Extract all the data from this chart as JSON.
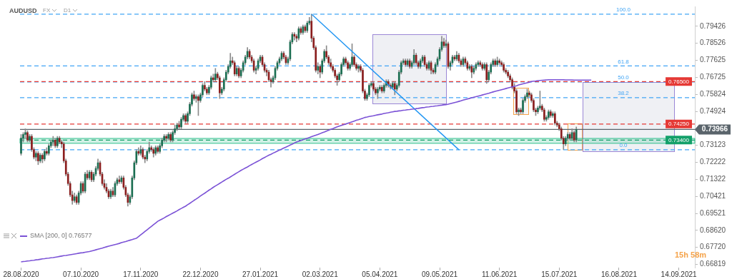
{
  "chart_data": {
    "type": "candlestick",
    "title": "AUDUSD",
    "categories": [
      "28.08.2020",
      null,
      null,
      null,
      null,
      null,
      null,
      null,
      null,
      null,
      null,
      null,
      null,
      null,
      null,
      null,
      null,
      null,
      null,
      null,
      null,
      null,
      null,
      null,
      null,
      null,
      null,
      null,
      "07.10.2020",
      null,
      null,
      null,
      null,
      null,
      null,
      null,
      null,
      null,
      null,
      null,
      null,
      null,
      null,
      null,
      null,
      null,
      null,
      null,
      null,
      null,
      null,
      null,
      null,
      null,
      null,
      null,
      "17.11.2020",
      null,
      null,
      null,
      null,
      null,
      null,
      null,
      null,
      null,
      null,
      null,
      null,
      null,
      null,
      null,
      null,
      null,
      null,
      null,
      null,
      null,
      null,
      null,
      null,
      null,
      null,
      null,
      "22.12.2020",
      null,
      null,
      null,
      null,
      null,
      null,
      null,
      null,
      null,
      null,
      null,
      null,
      null,
      null,
      null,
      null,
      null,
      null,
      null,
      null,
      null,
      null,
      null,
      null,
      null,
      null,
      null,
      "27.01.2021",
      null,
      null,
      null,
      null,
      null,
      null,
      null,
      null,
      null,
      null,
      null,
      null,
      null,
      null,
      null,
      null,
      null,
      null,
      null,
      null,
      null,
      null,
      null,
      null,
      null,
      null,
      null,
      "02.03.2021",
      null,
      null,
      null,
      null,
      null,
      null,
      null,
      null,
      null,
      null,
      null,
      null,
      null,
      null,
      null,
      null,
      null,
      null,
      null,
      null,
      null,
      null,
      null,
      null,
      null,
      null,
      null,
      "05.04.2021",
      null,
      null,
      null,
      null,
      null,
      null,
      null,
      null,
      null,
      null,
      null,
      null,
      null,
      null,
      null,
      null,
      null,
      null,
      null,
      null,
      null,
      null,
      null,
      null,
      null,
      null,
      null,
      "09.05.2021",
      null,
      null,
      null,
      null,
      null,
      null,
      null,
      null,
      null,
      null,
      null,
      null,
      null,
      null,
      null,
      null,
      null,
      null,
      null,
      null,
      null,
      null,
      null,
      null,
      null,
      null,
      null,
      "11.06.2021",
      null,
      null,
      null,
      null,
      null,
      null,
      null,
      null,
      null,
      null,
      null,
      null,
      null,
      null,
      null,
      null,
      null,
      null,
      null,
      null,
      null,
      null,
      null,
      null,
      null,
      null,
      null,
      "15.07.2021",
      null,
      null,
      null,
      null,
      null,
      null,
      null,
      null,
      null,
      null,
      null,
      null,
      null,
      null,
      null,
      null,
      null,
      null,
      null,
      null,
      null,
      null,
      null,
      null,
      null,
      null,
      null,
      "16.08.2021",
      null,
      null,
      null,
      null,
      null,
      null,
      null,
      null,
      null,
      null,
      null,
      null,
      null,
      null,
      null,
      null,
      null,
      null,
      null,
      null,
      null,
      null,
      null,
      null,
      null,
      null,
      null,
      "14.09.2021",
      null,
      null,
      null,
      null,
      null,
      null,
      null
    ],
    "ohlc": [
      [
        0.727,
        0.737,
        0.726,
        0.735
      ],
      [
        0.735,
        0.738,
        0.733,
        0.737
      ],
      [
        0.737,
        0.74,
        0.735,
        0.738
      ],
      [
        0.738,
        0.739,
        0.733,
        0.734
      ],
      [
        0.734,
        0.737,
        0.733,
        0.736
      ],
      [
        0.736,
        0.737,
        0.728,
        0.729
      ],
      [
        0.729,
        0.73,
        0.724,
        0.725
      ],
      [
        0.725,
        0.728,
        0.723,
        0.727
      ],
      [
        0.727,
        0.728,
        0.721,
        0.723
      ],
      [
        0.723,
        0.727,
        0.722,
        0.726
      ],
      [
        0.726,
        0.727,
        0.722,
        0.724
      ],
      [
        0.724,
        0.729,
        0.723,
        0.728
      ],
      [
        0.728,
        0.73,
        0.726,
        0.727
      ],
      [
        0.727,
        0.732,
        0.726,
        0.731
      ],
      [
        0.731,
        0.734,
        0.73,
        0.733
      ],
      [
        0.733,
        0.736,
        0.731,
        0.734
      ],
      [
        0.734,
        0.735,
        0.73,
        0.731
      ],
      [
        0.731,
        0.736,
        0.73,
        0.735
      ],
      [
        0.735,
        0.736,
        0.732,
        0.733
      ],
      [
        0.733,
        0.734,
        0.73,
        0.732
      ],
      [
        0.732,
        0.733,
        0.722,
        0.723
      ],
      [
        0.723,
        0.724,
        0.715,
        0.716
      ],
      [
        0.716,
        0.717,
        0.71,
        0.711
      ],
      [
        0.711,
        0.712,
        0.704,
        0.705
      ],
      [
        0.705,
        0.707,
        0.7,
        0.702
      ],
      [
        0.702,
        0.706,
        0.701,
        0.704
      ],
      [
        0.704,
        0.705,
        0.7,
        0.701
      ],
      [
        0.701,
        0.707,
        0.7,
        0.706
      ],
      [
        0.706,
        0.712,
        0.705,
        0.711
      ],
      [
        0.711,
        0.712,
        0.706,
        0.707
      ],
      [
        0.707,
        0.717,
        0.706,
        0.716
      ],
      [
        0.716,
        0.718,
        0.713,
        0.714
      ],
      [
        0.714,
        0.718,
        0.713,
        0.717
      ],
      [
        0.717,
        0.718,
        0.712,
        0.713
      ],
      [
        0.713,
        0.717,
        0.712,
        0.716
      ],
      [
        0.716,
        0.72,
        0.715,
        0.719
      ],
      [
        0.719,
        0.724,
        0.718,
        0.722
      ],
      [
        0.722,
        0.723,
        0.715,
        0.716
      ],
      [
        0.716,
        0.717,
        0.71,
        0.711
      ],
      [
        0.711,
        0.713,
        0.708,
        0.709
      ],
      [
        0.709,
        0.711,
        0.706,
        0.707
      ],
      [
        0.707,
        0.708,
        0.703,
        0.704
      ],
      [
        0.704,
        0.708,
        0.703,
        0.707
      ],
      [
        0.707,
        0.709,
        0.704,
        0.705
      ],
      [
        0.705,
        0.712,
        0.704,
        0.711
      ],
      [
        0.711,
        0.714,
        0.71,
        0.713
      ],
      [
        0.713,
        0.715,
        0.711,
        0.712
      ],
      [
        0.712,
        0.715,
        0.711,
        0.714
      ],
      [
        0.714,
        0.715,
        0.708,
        0.709
      ],
      [
        0.709,
        0.71,
        0.704,
        0.705
      ],
      [
        0.705,
        0.706,
        0.699,
        0.701
      ],
      [
        0.701,
        0.705,
        0.7,
        0.704
      ],
      [
        0.704,
        0.715,
        0.703,
        0.714
      ],
      [
        0.714,
        0.723,
        0.713,
        0.722
      ],
      [
        0.722,
        0.729,
        0.721,
        0.728
      ],
      [
        0.728,
        0.73,
        0.726,
        0.727
      ],
      [
        0.727,
        0.731,
        0.726,
        0.729
      ],
      [
        0.729,
        0.73,
        0.724,
        0.725
      ],
      [
        0.725,
        0.726,
        0.722,
        0.724
      ],
      [
        0.724,
        0.729,
        0.723,
        0.728
      ],
      [
        0.728,
        0.733,
        0.727,
        0.73
      ],
      [
        0.73,
        0.731,
        0.728,
        0.729
      ],
      [
        0.729,
        0.73,
        0.725,
        0.727
      ],
      [
        0.727,
        0.731,
        0.726,
        0.73
      ],
      [
        0.73,
        0.731,
        0.727,
        0.728
      ],
      [
        0.728,
        0.732,
        0.727,
        0.731
      ],
      [
        0.731,
        0.735,
        0.73,
        0.734
      ],
      [
        0.734,
        0.737,
        0.733,
        0.736
      ],
      [
        0.736,
        0.737,
        0.733,
        0.735
      ],
      [
        0.735,
        0.738,
        0.734,
        0.737
      ],
      [
        0.737,
        0.738,
        0.733,
        0.734
      ],
      [
        0.734,
        0.739,
        0.733,
        0.738
      ],
      [
        0.738,
        0.742,
        0.737,
        0.74
      ],
      [
        0.74,
        0.743,
        0.739,
        0.742
      ],
      [
        0.742,
        0.744,
        0.74,
        0.741
      ],
      [
        0.741,
        0.746,
        0.74,
        0.745
      ],
      [
        0.745,
        0.748,
        0.744,
        0.747
      ],
      [
        0.747,
        0.748,
        0.743,
        0.744
      ],
      [
        0.744,
        0.749,
        0.743,
        0.748
      ],
      [
        0.748,
        0.754,
        0.747,
        0.753
      ],
      [
        0.753,
        0.759,
        0.752,
        0.758
      ],
      [
        0.758,
        0.76,
        0.755,
        0.756
      ],
      [
        0.756,
        0.758,
        0.754,
        0.757
      ],
      [
        0.757,
        0.758,
        0.747,
        0.755
      ],
      [
        0.755,
        0.759,
        0.754,
        0.758
      ],
      [
        0.758,
        0.764,
        0.757,
        0.763
      ],
      [
        0.763,
        0.765,
        0.76,
        0.761
      ],
      [
        0.761,
        0.762,
        0.758,
        0.759
      ],
      [
        0.759,
        0.763,
        0.758,
        0.762
      ],
      [
        0.762,
        0.768,
        0.761,
        0.767
      ],
      [
        0.767,
        0.769,
        0.765,
        0.766
      ],
      [
        0.766,
        0.772,
        0.765,
        0.769
      ],
      [
        0.769,
        0.77,
        0.766,
        0.767
      ],
      [
        0.767,
        0.768,
        0.756,
        0.759
      ],
      [
        0.759,
        0.762,
        0.758,
        0.761
      ],
      [
        0.761,
        0.767,
        0.76,
        0.766
      ],
      [
        0.766,
        0.771,
        0.765,
        0.77
      ],
      [
        0.77,
        0.774,
        0.769,
        0.773
      ],
      [
        0.773,
        0.78,
        0.772,
        0.776
      ],
      [
        0.776,
        0.778,
        0.774,
        0.775
      ],
      [
        0.775,
        0.776,
        0.768,
        0.769
      ],
      [
        0.769,
        0.773,
        0.768,
        0.772
      ],
      [
        0.772,
        0.773,
        0.767,
        0.768
      ],
      [
        0.768,
        0.772,
        0.767,
        0.771
      ],
      [
        0.771,
        0.776,
        0.77,
        0.775
      ],
      [
        0.775,
        0.779,
        0.774,
        0.778
      ],
      [
        0.778,
        0.783,
        0.777,
        0.781
      ],
      [
        0.781,
        0.782,
        0.777,
        0.778
      ],
      [
        0.778,
        0.779,
        0.775,
        0.776
      ],
      [
        0.776,
        0.777,
        0.77,
        0.771
      ],
      [
        0.771,
        0.773,
        0.769,
        0.772
      ],
      [
        0.772,
        0.777,
        0.771,
        0.776
      ],
      [
        0.776,
        0.779,
        0.775,
        0.778
      ],
      [
        0.778,
        0.779,
        0.773,
        0.774
      ],
      [
        0.774,
        0.775,
        0.77,
        0.771
      ],
      [
        0.771,
        0.772,
        0.768,
        0.77
      ],
      [
        0.77,
        0.771,
        0.765,
        0.766
      ],
      [
        0.766,
        0.767,
        0.762,
        0.765
      ],
      [
        0.765,
        0.768,
        0.764,
        0.767
      ],
      [
        0.767,
        0.773,
        0.766,
        0.772
      ],
      [
        0.772,
        0.776,
        0.771,
        0.775
      ],
      [
        0.775,
        0.778,
        0.774,
        0.777
      ],
      [
        0.777,
        0.781,
        0.776,
        0.78
      ],
      [
        0.78,
        0.781,
        0.777,
        0.778
      ],
      [
        0.778,
        0.779,
        0.774,
        0.775
      ],
      [
        0.775,
        0.778,
        0.774,
        0.777
      ],
      [
        0.777,
        0.787,
        0.776,
        0.786
      ],
      [
        0.786,
        0.791,
        0.785,
        0.79
      ],
      [
        0.79,
        0.791,
        0.787,
        0.789
      ],
      [
        0.789,
        0.79,
        0.786,
        0.788
      ],
      [
        0.788,
        0.794,
        0.787,
        0.793
      ],
      [
        0.793,
        0.794,
        0.79,
        0.791
      ],
      [
        0.791,
        0.795,
        0.79,
        0.794
      ],
      [
        0.794,
        0.795,
        0.791,
        0.792
      ],
      [
        0.792,
        0.797,
        0.791,
        0.796
      ],
      [
        0.796,
        0.799,
        0.795,
        0.797
      ],
      [
        0.797,
        0.8007,
        0.786,
        0.788
      ],
      [
        0.788,
        0.789,
        0.782,
        0.783
      ],
      [
        0.783,
        0.784,
        0.77,
        0.771
      ],
      [
        0.771,
        0.775,
        0.769,
        0.773
      ],
      [
        0.773,
        0.774,
        0.767,
        0.77
      ],
      [
        0.77,
        0.777,
        0.769,
        0.776
      ],
      [
        0.776,
        0.782,
        0.775,
        0.781
      ],
      [
        0.781,
        0.784,
        0.777,
        0.778
      ],
      [
        0.778,
        0.779,
        0.774,
        0.775
      ],
      [
        0.775,
        0.777,
        0.772,
        0.773
      ],
      [
        0.773,
        0.774,
        0.77,
        0.771
      ],
      [
        0.771,
        0.772,
        0.767,
        0.768
      ],
      [
        0.768,
        0.769,
        0.763,
        0.766
      ],
      [
        0.766,
        0.77,
        0.765,
        0.769
      ],
      [
        0.769,
        0.775,
        0.768,
        0.774
      ],
      [
        0.774,
        0.778,
        0.773,
        0.777
      ],
      [
        0.777,
        0.778,
        0.774,
        0.775
      ],
      [
        0.775,
        0.776,
        0.771,
        0.772
      ],
      [
        0.772,
        0.775,
        0.771,
        0.774
      ],
      [
        0.774,
        0.785,
        0.773,
        0.778
      ],
      [
        0.778,
        0.779,
        0.773,
        0.774
      ],
      [
        0.774,
        0.775,
        0.771,
        0.772
      ],
      [
        0.772,
        0.774,
        0.77,
        0.773
      ],
      [
        0.773,
        0.774,
        0.77,
        0.771
      ],
      [
        0.771,
        0.772,
        0.759,
        0.76
      ],
      [
        0.76,
        0.761,
        0.755,
        0.756
      ],
      [
        0.756,
        0.759,
        0.755,
        0.758
      ],
      [
        0.758,
        0.764,
        0.757,
        0.763
      ],
      [
        0.763,
        0.765,
        0.762,
        0.764
      ],
      [
        0.764,
        0.765,
        0.76,
        0.761
      ],
      [
        0.761,
        0.762,
        0.758,
        0.759
      ],
      [
        0.759,
        0.762,
        0.756,
        0.761
      ],
      [
        0.761,
        0.763,
        0.76,
        0.762
      ],
      [
        0.762,
        0.763,
        0.759,
        0.76
      ],
      [
        0.76,
        0.764,
        0.759,
        0.763
      ],
      [
        0.763,
        0.766,
        0.762,
        0.765
      ],
      [
        0.765,
        0.766,
        0.762,
        0.763
      ],
      [
        0.763,
        0.764,
        0.761,
        0.762
      ],
      [
        0.762,
        0.765,
        0.761,
        0.764
      ],
      [
        0.764,
        0.765,
        0.758,
        0.761
      ],
      [
        0.761,
        0.764,
        0.76,
        0.763
      ],
      [
        0.763,
        0.771,
        0.762,
        0.77
      ],
      [
        0.77,
        0.776,
        0.769,
        0.775
      ],
      [
        0.775,
        0.777,
        0.774,
        0.776
      ],
      [
        0.776,
        0.777,
        0.773,
        0.774
      ],
      [
        0.774,
        0.777,
        0.773,
        0.776
      ],
      [
        0.776,
        0.777,
        0.772,
        0.773
      ],
      [
        0.773,
        0.776,
        0.772,
        0.775
      ],
      [
        0.775,
        0.782,
        0.774,
        0.779
      ],
      [
        0.779,
        0.78,
        0.774,
        0.775
      ],
      [
        0.775,
        0.776,
        0.772,
        0.773
      ],
      [
        0.773,
        0.777,
        0.772,
        0.776
      ],
      [
        0.776,
        0.779,
        0.775,
        0.778
      ],
      [
        0.778,
        0.779,
        0.773,
        0.774
      ],
      [
        0.774,
        0.775,
        0.771,
        0.772
      ],
      [
        0.772,
        0.776,
        0.771,
        0.775
      ],
      [
        0.775,
        0.776,
        0.769,
        0.771
      ],
      [
        0.771,
        0.772,
        0.769,
        0.77
      ],
      [
        0.77,
        0.775,
        0.769,
        0.774
      ],
      [
        0.774,
        0.778,
        0.773,
        0.777
      ],
      [
        0.777,
        0.783,
        0.776,
        0.782
      ],
      [
        0.782,
        0.789,
        0.781,
        0.786
      ],
      [
        0.786,
        0.788,
        0.783,
        0.784
      ],
      [
        0.784,
        0.787,
        0.783,
        0.785
      ],
      [
        0.785,
        0.786,
        0.772,
        0.773
      ],
      [
        0.773,
        0.776,
        0.771,
        0.775
      ],
      [
        0.775,
        0.779,
        0.774,
        0.778
      ],
      [
        0.778,
        0.779,
        0.776,
        0.777
      ],
      [
        0.777,
        0.781,
        0.776,
        0.779
      ],
      [
        0.779,
        0.78,
        0.775,
        0.776
      ],
      [
        0.776,
        0.777,
        0.773,
        0.774
      ],
      [
        0.774,
        0.778,
        0.773,
        0.777
      ],
      [
        0.777,
        0.778,
        0.774,
        0.775
      ],
      [
        0.775,
        0.776,
        0.771,
        0.772
      ],
      [
        0.772,
        0.774,
        0.771,
        0.773
      ],
      [
        0.773,
        0.774,
        0.767,
        0.77
      ],
      [
        0.77,
        0.773,
        0.769,
        0.772
      ],
      [
        0.772,
        0.775,
        0.771,
        0.774
      ],
      [
        0.774,
        0.776,
        0.773,
        0.775
      ],
      [
        0.775,
        0.776,
        0.773,
        0.774
      ],
      [
        0.774,
        0.775,
        0.771,
        0.772
      ],
      [
        0.772,
        0.775,
        0.771,
        0.774
      ],
      [
        0.774,
        0.775,
        0.764,
        0.766
      ],
      [
        0.766,
        0.771,
        0.765,
        0.77
      ],
      [
        0.77,
        0.775,
        0.769,
        0.774
      ],
      [
        0.774,
        0.777,
        0.773,
        0.776
      ],
      [
        0.776,
        0.777,
        0.773,
        0.774
      ],
      [
        0.774,
        0.778,
        0.773,
        0.776
      ],
      [
        0.776,
        0.777,
        0.774,
        0.775
      ],
      [
        0.775,
        0.776,
        0.773,
        0.774
      ],
      [
        0.774,
        0.775,
        0.77,
        0.771
      ],
      [
        0.771,
        0.772,
        0.769,
        0.77
      ],
      [
        0.77,
        0.771,
        0.767,
        0.768
      ],
      [
        0.768,
        0.769,
        0.765,
        0.766
      ],
      [
        0.766,
        0.767,
        0.761,
        0.762
      ],
      [
        0.762,
        0.764,
        0.759,
        0.76
      ],
      [
        0.76,
        0.761,
        0.748,
        0.749
      ],
      [
        0.749,
        0.751,
        0.747,
        0.75
      ],
      [
        0.75,
        0.751,
        0.748,
        0.749
      ],
      [
        0.749,
        0.756,
        0.748,
        0.755
      ],
      [
        0.755,
        0.758,
        0.754,
        0.757
      ],
      [
        0.757,
        0.761,
        0.756,
        0.759
      ],
      [
        0.759,
        0.76,
        0.757,
        0.758
      ],
      [
        0.758,
        0.759,
        0.754,
        0.755
      ],
      [
        0.755,
        0.756,
        0.749,
        0.75
      ],
      [
        0.75,
        0.751,
        0.747,
        0.749
      ],
      [
        0.749,
        0.752,
        0.748,
        0.751
      ],
      [
        0.751,
        0.76,
        0.75,
        0.752
      ],
      [
        0.752,
        0.753,
        0.749,
        0.75
      ],
      [
        0.75,
        0.751,
        0.744,
        0.745
      ],
      [
        0.745,
        0.747,
        0.744,
        0.746
      ],
      [
        0.746,
        0.75,
        0.745,
        0.749
      ],
      [
        0.749,
        0.75,
        0.746,
        0.747
      ],
      [
        0.747,
        0.749,
        0.746,
        0.748
      ],
      [
        0.748,
        0.749,
        0.742,
        0.743
      ],
      [
        0.743,
        0.744,
        0.741,
        0.742
      ],
      [
        0.742,
        0.743,
        0.739,
        0.74
      ],
      [
        0.74,
        0.741,
        0.734,
        0.735
      ],
      [
        0.735,
        0.736,
        0.729,
        0.732
      ],
      [
        0.732,
        0.736,
        0.731,
        0.735
      ],
      [
        0.735,
        0.738,
        0.734,
        0.737
      ],
      [
        0.737,
        0.738,
        0.734,
        0.735
      ],
      [
        0.735,
        0.74,
        0.734,
        0.738
      ],
      [
        0.738,
        0.739,
        0.733,
        0.734
      ],
      [
        0.734,
        0.741,
        0.733,
        0.73966
      ],
      null,
      null,
      null,
      null,
      null,
      null,
      null,
      null,
      null,
      null,
      null,
      null,
      null,
      null,
      null,
      null,
      null,
      null,
      null,
      null,
      null,
      null,
      null,
      null,
      null,
      null,
      null,
      null,
      null,
      null,
      null,
      null,
      null,
      null,
      null,
      null,
      null,
      null,
      null,
      null,
      null,
      null,
      null,
      null,
      null,
      null,
      null,
      null,
      null,
      null,
      null,
      null,
      null,
      null,
      null
    ],
    "series": [
      {
        "type": "line",
        "name": "SMA [200, 0] 0.76577",
        "color": "#7b52d6",
        "values": [
          0.6695,
          0.6697,
          0.6698,
          0.67,
          0.6701,
          0.6703,
          0.6704,
          0.6706,
          0.6707,
          0.6709,
          0.6711,
          0.6712,
          0.6714,
          0.6715,
          0.6717,
          0.6718,
          0.672,
          0.6722,
          0.6724,
          0.6726,
          0.6728,
          0.6729,
          0.6731,
          0.6733,
          0.6735,
          0.6737,
          0.6739,
          0.6741,
          0.6743,
          0.6744,
          0.6746,
          0.6748,
          0.675,
          0.6753,
          0.6756,
          0.6759,
          0.6762,
          0.6765,
          0.6768,
          0.6772,
          0.6775,
          0.6778,
          0.6781,
          0.6784,
          0.6787,
          0.679,
          0.6793,
          0.6797,
          0.68,
          0.6803,
          0.6807,
          0.681,
          0.6813,
          0.6817,
          0.682,
          0.6829,
          0.6838,
          0.6847,
          0.6856,
          0.6865,
          0.6874,
          0.6883,
          0.6892,
          0.6901,
          0.691,
          0.6916,
          0.6922,
          0.6928,
          0.6935,
          0.6941,
          0.6947,
          0.6953,
          0.6959,
          0.6965,
          0.6972,
          0.6978,
          0.6984,
          0.699,
          0.6998,
          0.7005,
          0.7013,
          0.7021,
          0.7028,
          0.7036,
          0.7044,
          0.7052,
          0.7059,
          0.7067,
          0.7075,
          0.7082,
          0.709,
          0.7097,
          0.7104,
          0.7111,
          0.7118,
          0.7125,
          0.7132,
          0.7138,
          0.7145,
          0.7152,
          0.7159,
          0.7166,
          0.7173,
          0.718,
          0.7186,
          0.7192,
          0.7198,
          0.7205,
          0.7211,
          0.7217,
          0.7223,
          0.7229,
          0.7235,
          0.7242,
          0.7248,
          0.7254,
          0.726,
          0.7265,
          0.7271,
          0.7276,
          0.7282,
          0.7287,
          0.7292,
          0.7298,
          0.7303,
          0.7308,
          0.7314,
          0.7319,
          0.7325,
          0.733,
          0.7334,
          0.7338,
          0.7342,
          0.7346,
          0.735,
          0.7354,
          0.7358,
          0.7362,
          0.7366,
          0.737,
          0.7374,
          0.7379,
          0.7383,
          0.7388,
          0.7392,
          0.7397,
          0.7401,
          0.7406,
          0.741,
          0.7414,
          0.7418,
          0.7422,
          0.7425,
          0.7429,
          0.7433,
          0.7437,
          0.7441,
          0.7445,
          0.7448,
          0.7452,
          0.7456,
          0.746,
          0.7462,
          0.7465,
          0.7467,
          0.7469,
          0.7472,
          0.7474,
          0.7476,
          0.7478,
          0.7481,
          0.7483,
          0.7485,
          0.7488,
          0.749,
          0.7492,
          0.7493,
          0.7495,
          0.7496,
          0.7498,
          0.7499,
          0.7501,
          0.7502,
          0.7504,
          0.7505,
          0.7507,
          0.7508,
          0.751,
          0.7512,
          0.7513,
          0.7515,
          0.7516,
          0.7518,
          0.7519,
          0.7521,
          0.7522,
          0.7524,
          0.7525,
          0.7527,
          0.7528,
          0.753,
          0.7533,
          0.7536,
          0.7539,
          0.7542,
          0.7545,
          0.7548,
          0.7552,
          0.7555,
          0.7558,
          0.7561,
          0.7564,
          0.7567,
          0.757,
          0.7573,
          0.7576,
          0.7579,
          0.7582,
          0.7585,
          0.7588,
          0.7592,
          0.7595,
          0.7598,
          0.7601,
          0.7604,
          0.7607,
          0.761,
          0.7613,
          0.7616,
          0.7619,
          0.7622,
          0.7625,
          0.7628,
          0.7632,
          0.7635,
          0.7638,
          0.7641,
          0.7644,
          0.7647,
          0.765,
          0.7652,
          0.7653,
          0.7655,
          0.7656,
          0.7657,
          0.7658,
          0.7659,
          0.766,
          0.766,
          0.766,
          0.766,
          0.766,
          0.766,
          0.766,
          0.766,
          0.7659,
          0.7659,
          0.7659,
          0.7659,
          0.7658,
          0.7658,
          0.7658,
          0.7658,
          0.7658,
          0.7658,
          0.7658,
          0.7658,
          0.7658,
          null,
          null,
          null,
          null,
          null,
          null,
          null,
          null,
          null,
          null,
          null,
          null,
          null,
          null,
          null,
          null,
          null,
          null,
          null,
          null,
          null,
          null,
          null,
          null,
          null,
          null,
          null,
          null,
          null,
          null,
          null,
          null,
          null,
          null,
          null,
          null,
          null,
          null,
          null,
          null,
          null,
          null,
          null,
          null,
          null,
          null,
          null,
          null
        ]
      },
      {
        "type": "line",
        "color": "#2196f3",
        "values": [
          null,
          null,
          null,
          null,
          null,
          null,
          null,
          null,
          null,
          null,
          null,
          null,
          null,
          null,
          null,
          null,
          null,
          null,
          null,
          null,
          null,
          null,
          null,
          null,
          null,
          null,
          null,
          null,
          null,
          null,
          null,
          null,
          null,
          null,
          null,
          null,
          null,
          null,
          null,
          null,
          null,
          null,
          null,
          null,
          null,
          null,
          null,
          null,
          null,
          null,
          null,
          null,
          null,
          null,
          null,
          null,
          null,
          null,
          null,
          null,
          null,
          null,
          null,
          null,
          null,
          null,
          null,
          null,
          null,
          null,
          null,
          null,
          null,
          null,
          null,
          null,
          null,
          null,
          null,
          null,
          null,
          null,
          null,
          null,
          null,
          null,
          null,
          null,
          null,
          null,
          null,
          null,
          null,
          null,
          null,
          null,
          null,
          null,
          null,
          null,
          null,
          null,
          null,
          null,
          null,
          null,
          null,
          null,
          null,
          null,
          null,
          null,
          null,
          null,
          null,
          null,
          null,
          null,
          null,
          null,
          null,
          null,
          null,
          null,
          null,
          null,
          null,
          null,
          null,
          null,
          null,
          null,
          null,
          null,
          null,
          null,
          0.8007,
          null,
          null,
          null,
          null,
          null,
          null,
          null,
          null,
          null,
          null,
          null,
          null,
          null,
          null,
          null,
          null,
          null,
          null,
          null,
          null,
          null,
          null,
          null,
          null,
          null,
          null,
          null,
          null,
          null,
          null,
          null,
          null,
          null,
          null,
          null,
          null,
          null,
          null,
          null,
          null,
          null,
          null,
          null,
          null,
          null,
          null,
          null,
          null,
          null,
          null,
          null,
          null,
          null,
          null,
          null,
          null,
          null,
          null,
          null,
          null,
          null,
          null,
          null,
          null,
          null,
          null,
          null,
          null,
          0.7289,
          null,
          null,
          null,
          null,
          null,
          null,
          null,
          null,
          null,
          null,
          null,
          null,
          null,
          null,
          null,
          null,
          null,
          null,
          null,
          null,
          null,
          null,
          null,
          null,
          null,
          null,
          null,
          null,
          null,
          null,
          null,
          null,
          null,
          null,
          null,
          null,
          null,
          null,
          null,
          null,
          null,
          null,
          null,
          null,
          null,
          null,
          null,
          null,
          null,
          null,
          null,
          null,
          null,
          null,
          null,
          null,
          null,
          null,
          null,
          null,
          null,
          null,
          null,
          null,
          null,
          null,
          null,
          null,
          null,
          null,
          null,
          null,
          null,
          null,
          null,
          null,
          null,
          null,
          null,
          null,
          null,
          null,
          null,
          null,
          null,
          null,
          null,
          null,
          null,
          null,
          null,
          null,
          null,
          null,
          null,
          null,
          null,
          null,
          null,
          null,
          null,
          null,
          null,
          null,
          null,
          null,
          null,
          null,
          null,
          null
        ]
      }
    ],
    "ylim": [
      0.6665,
      0.8048
    ],
    "yticks": [
      0.66819,
      {
        "value": 0.6772,
        "label": "0.67720"
      },
      {
        "value": 0.6862,
        "label": "0.68620"
      },
      0.69521,
      0.70421,
      0.71322,
      0.72222,
      0.73123,
      0.74924,
      0.75824,
      0.76725,
      0.77625,
      0.78526,
      0.79426
    ],
    "ref_lines": [
      {
        "axis": "y",
        "value": 0.8007,
        "color": "#42a5f5",
        "line_style": "dashed"
      },
      {
        "axis": "y",
        "value": 0.7733,
        "color": "#42a5f5",
        "line_style": "dashed"
      },
      {
        "axis": "y",
        "value": 0.7648,
        "color": "#42a5f5",
        "line_style": "dashed"
      },
      {
        "axis": "y",
        "value": 0.7565,
        "color": "#42a5f5",
        "line_style": "dashed"
      },
      {
        "axis": "y",
        "value": 0.7289,
        "color": "#42a5f5",
        "line_style": "dashed"
      },
      {
        "axis": "y",
        "value": 0.765,
        "label": "0.76500",
        "color": "#e53935",
        "line_style": "dashed"
      },
      {
        "axis": "y",
        "value": 0.7425,
        "label": "0.74250",
        "color": "#e53935",
        "line_style": "dashed"
      },
      {
        "axis": "y",
        "value": 0.734,
        "label": "0.73400",
        "color": "#14a06a",
        "line_style": "dashed"
      },
      {
        "axis": "y",
        "value": 0.73966,
        "label": "0.73966",
        "color": "#5a646b",
        "line_style": "solid"
      }
    ],
    "bands": [
      {
        "axis": "y",
        "from": 0.7323,
        "to": 0.7349,
        "color": "#2ebf8c"
      }
    ],
    "annotations": [
      "FX",
      "D1",
      "15h 58m",
      {
        "text": "100.0",
        "y": 0.8007
      },
      {
        "text": "61.8",
        "y": 0.7733
      },
      {
        "text": "50.0",
        "y": 0.7648
      },
      {
        "text": "38.2",
        "y": 0.7565
      },
      {
        "text": "0.0",
        "y": 0.7289
      }
    ],
    "legend": "bottom left",
    "grid": false
  }
}
